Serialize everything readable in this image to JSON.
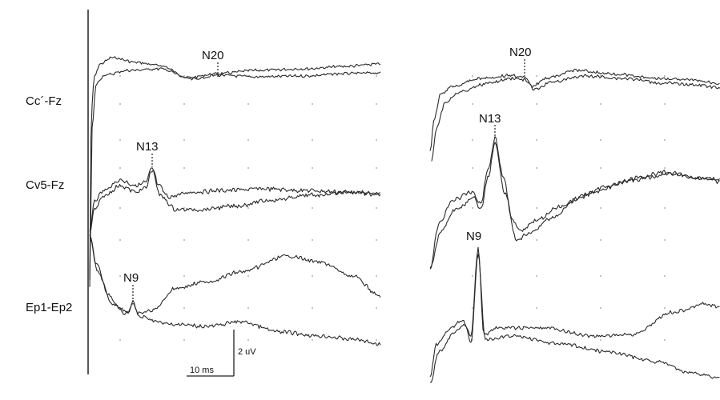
{
  "chart_data": {
    "type": "line",
    "title": "",
    "channels": [
      {
        "name": "Cc´-Fz",
        "peak": "N20"
      },
      {
        "name": "Cv5-Fz",
        "peak": "N13"
      },
      {
        "name": "Ep1-Ep2",
        "peak": "N9"
      }
    ],
    "scale_bar": {
      "time": "10 ms",
      "amplitude": "2 uV"
    },
    "panels": [
      "left",
      "right"
    ],
    "grid": "dotted",
    "series_per_channel": 2
  }
}
